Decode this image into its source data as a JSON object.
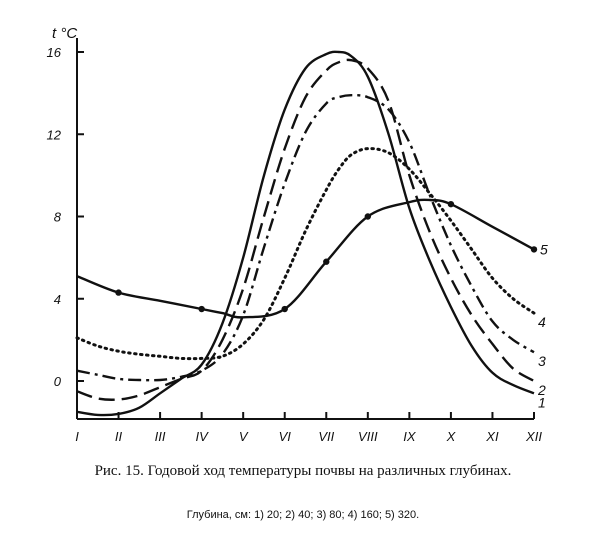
{
  "chart_data": {
    "type": "line",
    "ylabel": "t °C",
    "categories": [
      "I",
      "II",
      "III",
      "IV",
      "V",
      "VI",
      "VII",
      "VIII",
      "IX",
      "X",
      "XI",
      "XII"
    ],
    "y_ticks": [
      "0",
      "4",
      "8",
      "12",
      "16"
    ],
    "ylim": [
      -1.6,
      16.5
    ],
    "grid": false,
    "series": [
      {
        "name": "1",
        "style": "solid",
        "x": [
          1,
          1.5,
          2,
          2.5,
          3,
          3.5,
          4,
          4.5,
          5,
          5.5,
          6,
          6.5,
          7,
          7.3,
          7.6,
          8,
          8.5,
          9,
          9.5,
          10,
          10.5,
          11,
          11.5,
          12
        ],
        "y": [
          -1.5,
          -1.65,
          -1.6,
          -1.3,
          -0.6,
          0.1,
          0.8,
          2.8,
          6.0,
          10.0,
          13.2,
          15.2,
          15.9,
          16.0,
          15.8,
          14.8,
          12.0,
          8.4,
          5.8,
          3.6,
          1.7,
          0.4,
          -0.2,
          -0.6
        ]
      },
      {
        "name": "2",
        "style": "dash",
        "x": [
          1,
          1.5,
          2,
          2.5,
          3,
          3.5,
          4,
          4.5,
          5,
          5.5,
          6,
          6.5,
          7,
          7.3,
          7.6,
          8,
          8.5,
          9,
          9.5,
          10,
          10.5,
          11,
          11.5,
          12
        ],
        "y": [
          -0.5,
          -0.85,
          -0.9,
          -0.7,
          -0.3,
          0.1,
          0.5,
          2.0,
          4.5,
          8.0,
          11.3,
          13.8,
          15.1,
          15.5,
          15.6,
          15.2,
          13.6,
          10.0,
          7.2,
          5.0,
          3.2,
          1.8,
          0.6,
          0.0
        ]
      },
      {
        "name": "3",
        "style": "dashdot",
        "x": [
          1,
          1.5,
          2,
          2.5,
          3,
          3.5,
          4,
          4.5,
          5,
          5.5,
          6,
          6.5,
          7,
          7.3,
          7.6,
          8,
          8.5,
          9,
          9.5,
          10,
          10.5,
          11,
          11.5,
          12
        ],
        "y": [
          0.5,
          0.3,
          0.1,
          0.05,
          0.05,
          0.2,
          0.5,
          1.3,
          3.2,
          6.5,
          9.6,
          12.1,
          13.5,
          13.8,
          13.9,
          13.8,
          13.2,
          11.6,
          9.0,
          6.6,
          4.6,
          2.9,
          2.0,
          1.4
        ]
      },
      {
        "name": "4",
        "style": "dotted",
        "x": [
          1,
          1.5,
          2,
          2.5,
          3,
          3.5,
          4,
          4.5,
          5,
          5.5,
          6,
          6.5,
          7,
          7.3,
          7.6,
          8,
          8.5,
          9,
          9.5,
          10,
          10.5,
          11,
          11.5,
          12
        ],
        "y": [
          2.1,
          1.7,
          1.45,
          1.3,
          1.2,
          1.1,
          1.1,
          1.2,
          1.8,
          3.0,
          5.0,
          7.3,
          9.3,
          10.3,
          11.0,
          11.3,
          11.1,
          10.3,
          9.1,
          7.8,
          6.4,
          5.0,
          4.0,
          3.3
        ]
      },
      {
        "name": "5",
        "style": "solid-markers",
        "x": [
          1,
          2,
          3,
          4,
          4.5,
          5,
          6,
          7,
          8,
          9,
          9.5,
          10,
          11,
          12
        ],
        "y": [
          5.1,
          4.3,
          3.9,
          3.5,
          3.3,
          3.1,
          3.5,
          5.8,
          8.0,
          8.7,
          8.8,
          8.6,
          7.5,
          6.4
        ],
        "markers_x": [
          2,
          4,
          6,
          7,
          8,
          10,
          12
        ]
      }
    ]
  },
  "caption": {
    "main": "Рис. 15. Годовой ход температуры почвы на различных глубинах.",
    "sub": "Глубина, см: 1) 20; 2) 40; 3) 80; 4) 160; 5) 320."
  }
}
